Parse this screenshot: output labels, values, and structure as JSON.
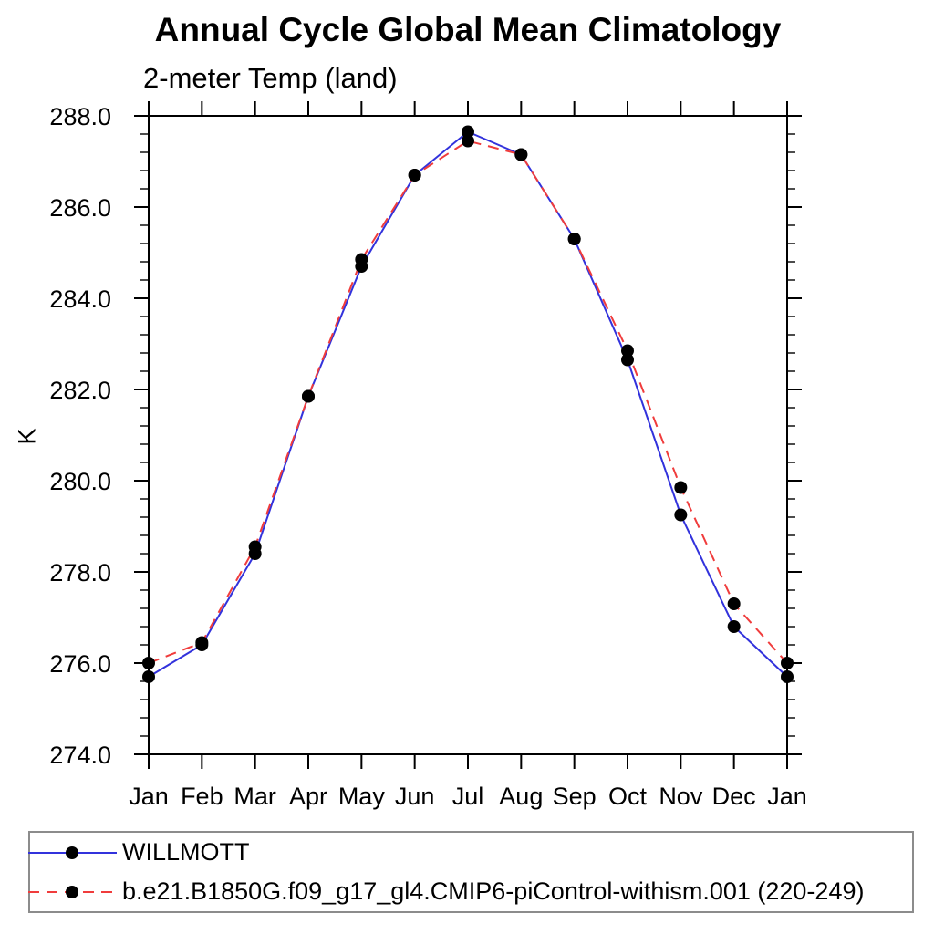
{
  "page": {
    "background": "#ffffff",
    "text_color": "#000000"
  },
  "chart_data": {
    "type": "line",
    "title": "Annual Cycle Global Mean Climatology",
    "subtitle": "2-meter Temp (land)",
    "xlabel": "",
    "ylabel": "K",
    "categories": [
      "Jan",
      "Feb",
      "Mar",
      "Apr",
      "May",
      "Jun",
      "Jul",
      "Aug",
      "Sep",
      "Oct",
      "Nov",
      "Dec",
      "Jan"
    ],
    "ylim": [
      274.0,
      288.0
    ],
    "ytick_major": 2.0,
    "ytick_minor": 0.4,
    "ytick_labels": [
      "274.0",
      "276.0",
      "278.0",
      "280.0",
      "282.0",
      "284.0",
      "286.0",
      "288.0"
    ],
    "grid": false,
    "frame": true,
    "legend_position": "bottom",
    "marker": "filled-circle",
    "marker_color": "#000000",
    "series": [
      {
        "name": "WILLMOTT",
        "color": "#3232dc",
        "line_style": "solid",
        "values": [
          275.7,
          276.4,
          278.4,
          281.85,
          284.7,
          286.7,
          287.65,
          287.15,
          285.3,
          282.65,
          279.25,
          276.8,
          275.7
        ]
      },
      {
        "name": "b.e21.B1850G.f09_g17_gl4.CMIP6-piControl-withism.001 (220-249)",
        "color": "#f03c3c",
        "line_style": "dashed",
        "values": [
          276.0,
          276.45,
          278.55,
          281.85,
          284.85,
          286.7,
          287.45,
          287.15,
          285.3,
          282.85,
          279.85,
          277.3,
          276.0
        ]
      }
    ]
  }
}
